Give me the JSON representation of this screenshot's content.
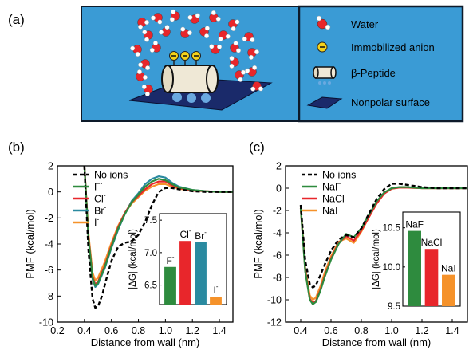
{
  "panel_labels": {
    "a": "(a)",
    "b": "(b)",
    "c": "(c)"
  },
  "schematic": {
    "background_color": "#3a9bd5",
    "legend": [
      {
        "icon": "water-molecule-icon",
        "label": "Water"
      },
      {
        "icon": "anion-icon",
        "label": "Immobilized anion"
      },
      {
        "icon": "peptide-cylinder-icon",
        "label": "β-Peptide"
      },
      {
        "icon": "surface-icon",
        "label": "Nonpolar surface"
      }
    ]
  },
  "chart_data": [
    {
      "id": "b",
      "type": "line",
      "xlabel": "Distance from wall (nm)",
      "ylabel": "PMF (kcal/mol)",
      "xlim": [
        0.2,
        1.5
      ],
      "ylim": [
        -10,
        2
      ],
      "xticks": [
        "0.2",
        "0.4",
        "0.6",
        "0.8",
        "1.0",
        "1.2",
        "1.4"
      ],
      "yticks": [
        "2",
        "0",
        "-2",
        "-4",
        "-6",
        "-8",
        "-10"
      ],
      "legend_position": "top-left",
      "series": [
        {
          "name": "No ions",
          "color": "#000000",
          "dashed": true,
          "x": [
            0.4,
            0.43,
            0.46,
            0.48,
            0.5,
            0.53,
            0.56,
            0.6,
            0.65,
            0.7,
            0.75,
            0.8,
            0.85,
            0.9,
            0.95,
            1.0,
            1.05,
            1.1,
            1.2,
            1.3,
            1.4,
            1.5
          ],
          "y": [
            2.0,
            -4.5,
            -8.2,
            -8.9,
            -8.8,
            -8.0,
            -6.8,
            -5.3,
            -4.2,
            -3.9,
            -3.8,
            -3.3,
            -2.3,
            -1.0,
            0.0,
            0.3,
            0.3,
            0.2,
            0.05,
            0.0,
            0.0,
            0.0
          ]
        },
        {
          "name": "F",
          "sup": "-",
          "color": "#2e8b3e",
          "dashed": false,
          "x": [
            0.4,
            0.43,
            0.46,
            0.48,
            0.5,
            0.55,
            0.6,
            0.65,
            0.7,
            0.75,
            0.8,
            0.85,
            0.9,
            0.95,
            1.0,
            1.05,
            1.1,
            1.2,
            1.3,
            1.4,
            1.5
          ],
          "y": [
            2.0,
            -3.5,
            -6.6,
            -7.2,
            -7.0,
            -5.8,
            -4.2,
            -2.8,
            -1.7,
            -0.8,
            -0.2,
            0.4,
            0.8,
            1.0,
            0.9,
            0.6,
            0.35,
            0.15,
            0.05,
            0.0,
            0.0
          ]
        },
        {
          "name": "Cl",
          "sup": "-",
          "color": "#e8262b",
          "dashed": false,
          "x": [
            0.4,
            0.43,
            0.46,
            0.48,
            0.5,
            0.55,
            0.6,
            0.65,
            0.7,
            0.75,
            0.8,
            0.85,
            0.9,
            0.95,
            1.0,
            1.05,
            1.1,
            1.2,
            1.3,
            1.4,
            1.5
          ],
          "y": [
            2.0,
            -3.4,
            -6.5,
            -7.1,
            -6.9,
            -5.7,
            -4.1,
            -2.7,
            -1.6,
            -0.8,
            -0.3,
            0.2,
            0.6,
            0.8,
            0.8,
            0.5,
            0.3,
            0.1,
            0.05,
            0.0,
            0.0
          ]
        },
        {
          "name": "Br",
          "sup": "-",
          "color": "#2a8aa0",
          "dashed": false,
          "x": [
            0.4,
            0.43,
            0.46,
            0.48,
            0.5,
            0.55,
            0.6,
            0.65,
            0.7,
            0.75,
            0.8,
            0.85,
            0.9,
            0.95,
            1.0,
            1.05,
            1.1,
            1.2,
            1.3,
            1.4,
            1.5
          ],
          "y": [
            2.0,
            -3.6,
            -6.7,
            -7.3,
            -7.1,
            -5.9,
            -4.3,
            -2.9,
            -1.7,
            -0.7,
            -0.1,
            0.6,
            1.0,
            1.2,
            1.1,
            0.7,
            0.4,
            0.15,
            0.05,
            0.0,
            0.0
          ]
        },
        {
          "name": "I",
          "sup": "-",
          "color": "#f5922a",
          "dashed": false,
          "x": [
            0.4,
            0.43,
            0.46,
            0.48,
            0.5,
            0.55,
            0.6,
            0.65,
            0.7,
            0.75,
            0.8,
            0.85,
            0.9,
            0.95,
            1.0,
            1.05,
            1.1,
            1.2,
            1.3,
            1.4,
            1.5
          ],
          "y": [
            2.0,
            -3.2,
            -6.2,
            -6.8,
            -6.6,
            -5.4,
            -3.9,
            -2.6,
            -1.6,
            -0.9,
            -0.4,
            0.1,
            0.4,
            0.6,
            0.6,
            0.4,
            0.25,
            0.1,
            0.05,
            0.0,
            0.0
          ]
        }
      ],
      "inset": {
        "type": "bar",
        "ylabel": "|ΔG| (kcal/mol)",
        "ylim": [
          6.2,
          7.6
        ],
        "yticks": [
          "6.5",
          "7.0",
          "7.5"
        ],
        "categories": [
          {
            "label": "F",
            "sup": "-"
          },
          {
            "label": "Cl",
            "sup": "-"
          },
          {
            "label": "Br",
            "sup": "-"
          },
          {
            "label": "I",
            "sup": "-"
          }
        ],
        "values": [
          6.78,
          7.18,
          7.16,
          6.32
        ],
        "colors": [
          "#2e8b3e",
          "#e8262b",
          "#2a8aa0",
          "#f5922a"
        ]
      }
    },
    {
      "id": "c",
      "type": "line",
      "xlabel": "Distance from wall (nm)",
      "ylabel": "PMF (kcal/mol)",
      "xlim": [
        0.3,
        1.5
      ],
      "ylim": [
        -12,
        2
      ],
      "xticks": [
        "0.4",
        "0.6",
        "0.8",
        "1.0",
        "1.2",
        "1.4"
      ],
      "yticks": [
        "2",
        "0",
        "-2",
        "-4",
        "-6",
        "-8",
        "-10",
        "-12"
      ],
      "legend_position": "top-left",
      "series": [
        {
          "name": "No ions",
          "color": "#000000",
          "dashed": true,
          "x": [
            0.4,
            0.43,
            0.46,
            0.48,
            0.5,
            0.53,
            0.56,
            0.6,
            0.65,
            0.7,
            0.75,
            0.8,
            0.85,
            0.9,
            0.95,
            1.0,
            1.05,
            1.1,
            1.2,
            1.3,
            1.4,
            1.5
          ],
          "y": [
            -1.5,
            -6.5,
            -8.6,
            -8.9,
            -8.7,
            -7.8,
            -6.8,
            -5.6,
            -4.6,
            -4.2,
            -4.4,
            -3.6,
            -2.3,
            -1.0,
            -0.1,
            0.4,
            0.4,
            0.3,
            0.1,
            0.0,
            0.0,
            0.0
          ]
        },
        {
          "name": "NaF",
          "color": "#2e8b3e",
          "dashed": false,
          "x": [
            0.4,
            0.43,
            0.46,
            0.48,
            0.5,
            0.53,
            0.56,
            0.6,
            0.65,
            0.7,
            0.75,
            0.8,
            0.85,
            0.9,
            0.95,
            1.0,
            1.05,
            1.1,
            1.2,
            1.3,
            1.4,
            1.5
          ],
          "y": [
            -1.8,
            -7.5,
            -10.0,
            -10.4,
            -10.2,
            -9.2,
            -7.9,
            -6.4,
            -5.0,
            -4.1,
            -4.4,
            -3.6,
            -2.4,
            -1.2,
            -0.4,
            0.0,
            0.1,
            0.1,
            0.0,
            0.0,
            0.0,
            0.0
          ]
        },
        {
          "name": "NaCl",
          "color": "#e8262b",
          "dashed": false,
          "x": [
            0.4,
            0.43,
            0.46,
            0.48,
            0.5,
            0.53,
            0.56,
            0.6,
            0.65,
            0.7,
            0.75,
            0.8,
            0.85,
            0.9,
            0.95,
            1.0,
            1.05,
            1.1,
            1.2,
            1.3,
            1.4,
            1.5
          ],
          "y": [
            -1.8,
            -7.4,
            -9.9,
            -10.3,
            -10.1,
            -9.1,
            -7.8,
            -6.3,
            -4.9,
            -4.3,
            -4.7,
            -3.8,
            -2.6,
            -1.4,
            -0.5,
            -0.05,
            0.05,
            0.05,
            0.0,
            0.0,
            0.0,
            0.0
          ]
        },
        {
          "name": "NaI",
          "color": "#f5922a",
          "dashed": false,
          "x": [
            0.4,
            0.43,
            0.46,
            0.48,
            0.5,
            0.53,
            0.56,
            0.6,
            0.65,
            0.7,
            0.75,
            0.8,
            0.85,
            0.9,
            0.95,
            1.0,
            1.05,
            1.1,
            1.2,
            1.3,
            1.4,
            1.5
          ],
          "y": [
            -1.6,
            -7.2,
            -9.6,
            -10.0,
            -9.8,
            -8.8,
            -7.5,
            -6.1,
            -4.8,
            -4.5,
            -4.9,
            -3.9,
            -2.6,
            -1.4,
            -0.5,
            -0.05,
            0.05,
            0.05,
            0.0,
            0.0,
            0.0,
            0.0
          ]
        }
      ],
      "inset": {
        "type": "bar",
        "ylabel": "|ΔG| (kcal/mol)",
        "ylim": [
          9.5,
          10.7
        ],
        "yticks": [
          "9.5",
          "10.0",
          "10.5"
        ],
        "categories": [
          {
            "label": "NaF"
          },
          {
            "label": "NaCl"
          },
          {
            "label": "NaI"
          }
        ],
        "values": [
          10.46,
          10.23,
          9.9
        ],
        "colors": [
          "#2e8b3e",
          "#e8262b",
          "#f5922a"
        ]
      }
    }
  ]
}
